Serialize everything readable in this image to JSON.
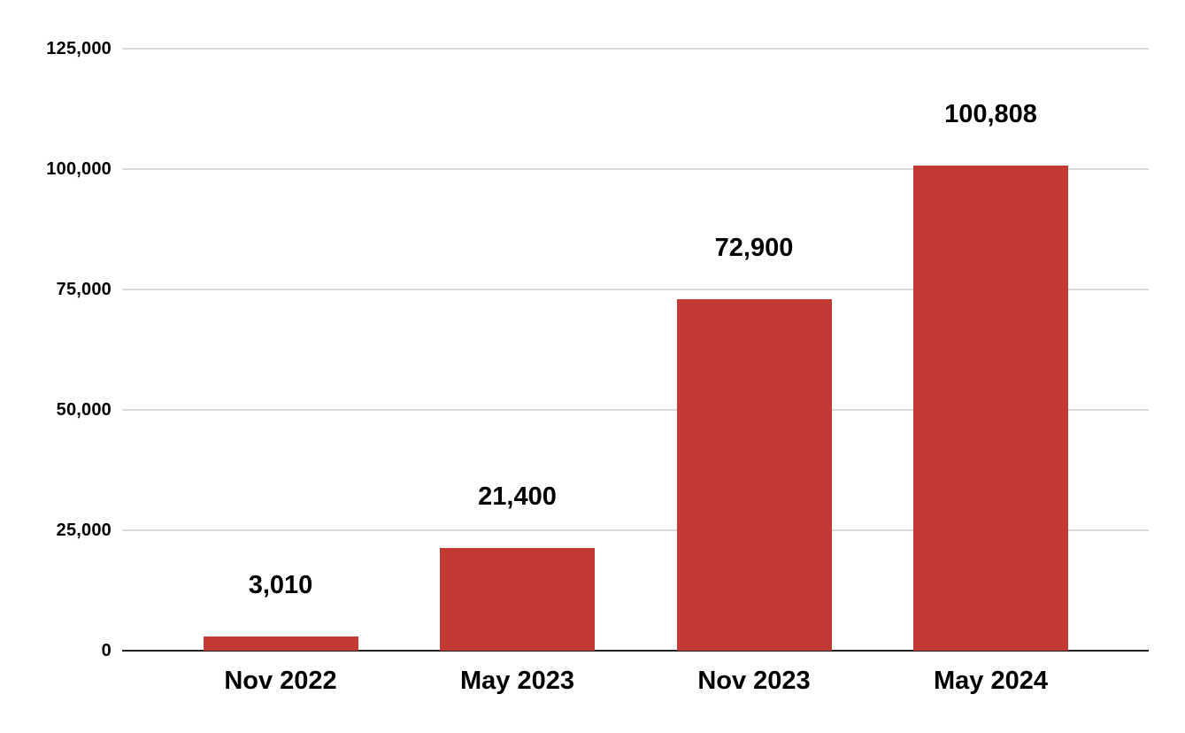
{
  "chart_data": {
    "type": "bar",
    "title": "",
    "xlabel": "",
    "ylabel": "",
    "categories": [
      "Nov 2022",
      "May 2023",
      "Nov 2023",
      "May 2024"
    ],
    "values": [
      3010,
      21400,
      72900,
      100808
    ],
    "value_labels": [
      "3,010",
      "21,400",
      "72,900",
      "100,808"
    ],
    "ylim": [
      0,
      125000
    ],
    "y_ticks": [
      {
        "value": 0,
        "label": "0"
      },
      {
        "value": 25000,
        "label": "25,000"
      },
      {
        "value": 50000,
        "label": "50,000"
      },
      {
        "value": 75000,
        "label": "75,000"
      },
      {
        "value": 100000,
        "label": "100,000"
      },
      {
        "value": 125000,
        "label": "125,000"
      }
    ],
    "grid": true,
    "legend_position": "none",
    "colors": {
      "bar": "#c33a35",
      "gridline": "#d9d9d9",
      "axis_line": "#212121",
      "label_text": "#000000",
      "background": "#ffffff"
    }
  }
}
